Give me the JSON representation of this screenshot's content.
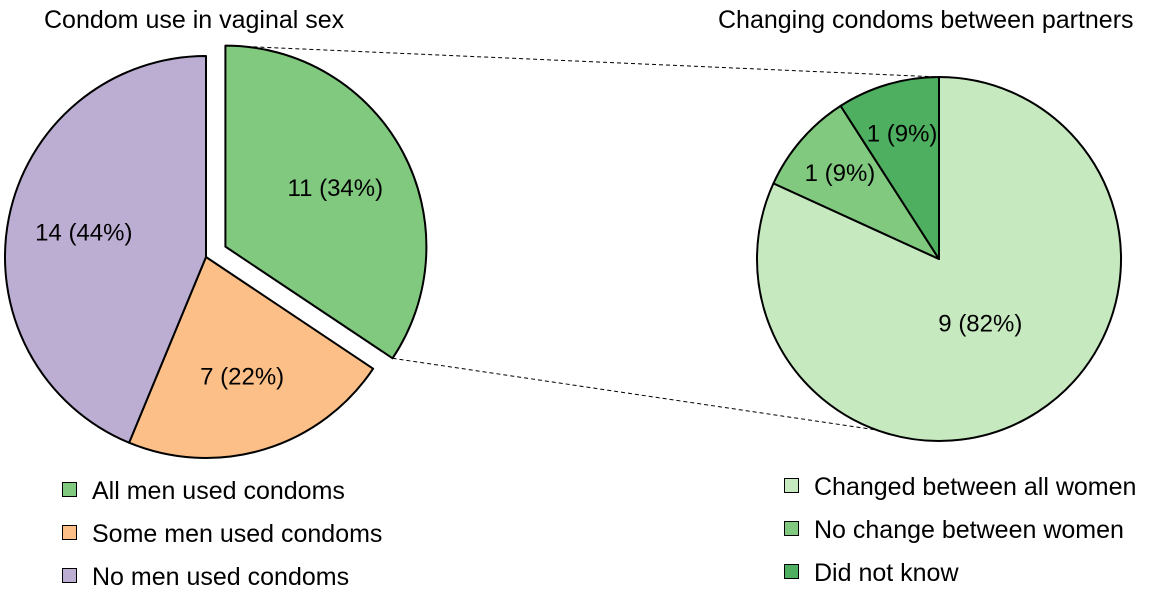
{
  "chart_data": [
    {
      "type": "pie",
      "title": "Condom use in vaginal sex",
      "slices": [
        {
          "label": "All men used condoms",
          "value": 11,
          "display": "11 (34%)",
          "color": "#80c97f",
          "exploded": true
        },
        {
          "label": "Some men used condoms",
          "value": 7,
          "display": "7 (22%)",
          "color": "#fbbf87",
          "exploded": false
        },
        {
          "label": "No men used condoms",
          "value": 14,
          "display": "14 (44%)",
          "color": "#bcaed3",
          "exploded": false
        }
      ],
      "legend": [
        {
          "label": "All men used condoms",
          "color": "#80c97f"
        },
        {
          "label": "Some men used condoms",
          "color": "#fbbf87"
        },
        {
          "label": "No men used condoms",
          "color": "#bcaed3"
        }
      ]
    },
    {
      "type": "pie",
      "title": "Changing condoms between partners",
      "slices": [
        {
          "label": "Changed between all women",
          "value": 9,
          "display": "9 (82%)",
          "color": "#c7e9c0"
        },
        {
          "label": "No change between women",
          "value": 1,
          "display": "1 (9%)",
          "color": "#80c97f"
        },
        {
          "label": "Did not know",
          "value": 1,
          "display": "1 (9%)",
          "color": "#4daf5f"
        }
      ],
      "legend": [
        {
          "label": "Changed between all women",
          "color": "#c7e9c0"
        },
        {
          "label": "No change between women",
          "color": "#80c97f"
        },
        {
          "label": "Did not know",
          "color": "#4daf5f"
        }
      ]
    }
  ]
}
